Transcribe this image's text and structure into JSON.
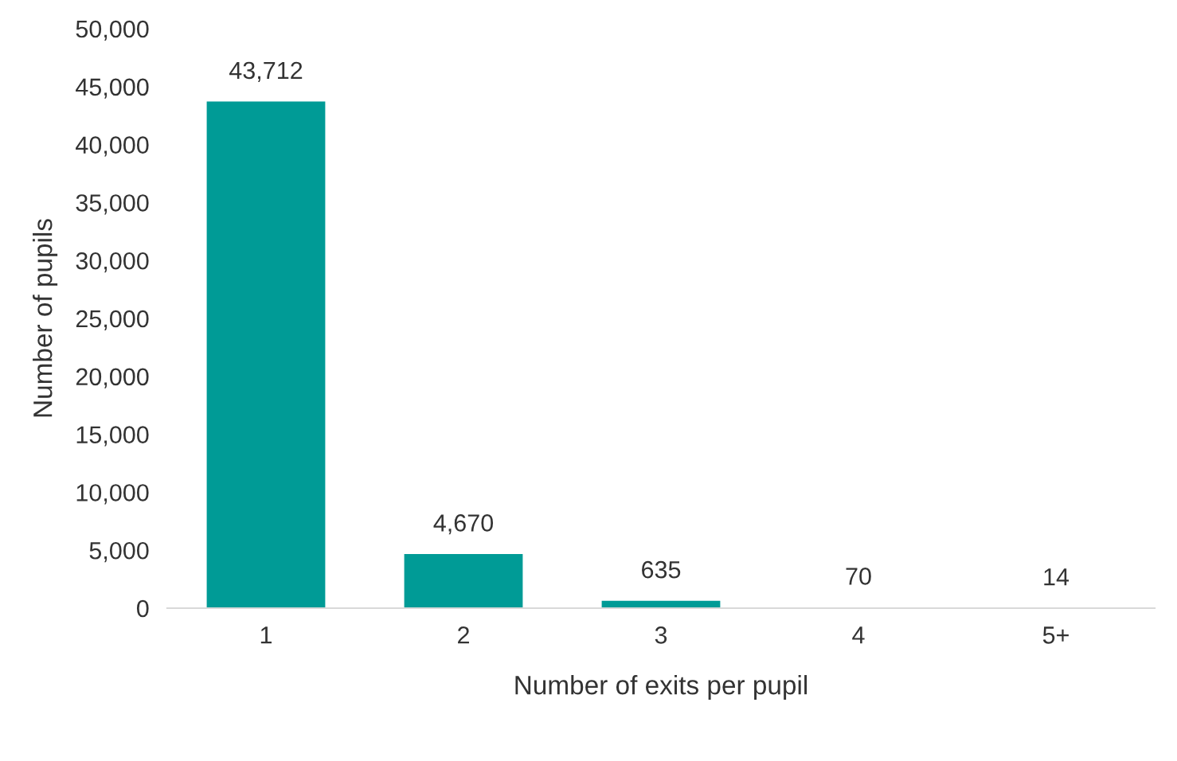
{
  "chart_data": {
    "type": "bar",
    "xlabel": "Number of exits per pupil",
    "ylabel": "Number of pupils",
    "categories": [
      "1",
      "2",
      "3",
      "4",
      "5+"
    ],
    "values": [
      43712,
      4670,
      635,
      70,
      14
    ],
    "value_labels": [
      "43,712",
      "4,670",
      "635",
      "70",
      "14"
    ],
    "color": "#009b96",
    "ylim": [
      0,
      50000
    ],
    "yticks": [
      {
        "value": 0,
        "label": "0"
      },
      {
        "value": 5000,
        "label": "5,000"
      },
      {
        "value": 10000,
        "label": "10,000"
      },
      {
        "value": 15000,
        "label": "15,000"
      },
      {
        "value": 20000,
        "label": "20,000"
      },
      {
        "value": 25000,
        "label": "25,000"
      },
      {
        "value": 30000,
        "label": "30,000"
      },
      {
        "value": 35000,
        "label": "35,000"
      },
      {
        "value": 40000,
        "label": "40,000"
      },
      {
        "value": 45000,
        "label": "45,000"
      },
      {
        "value": 50000,
        "label": "50,000"
      }
    ],
    "grid": false
  }
}
